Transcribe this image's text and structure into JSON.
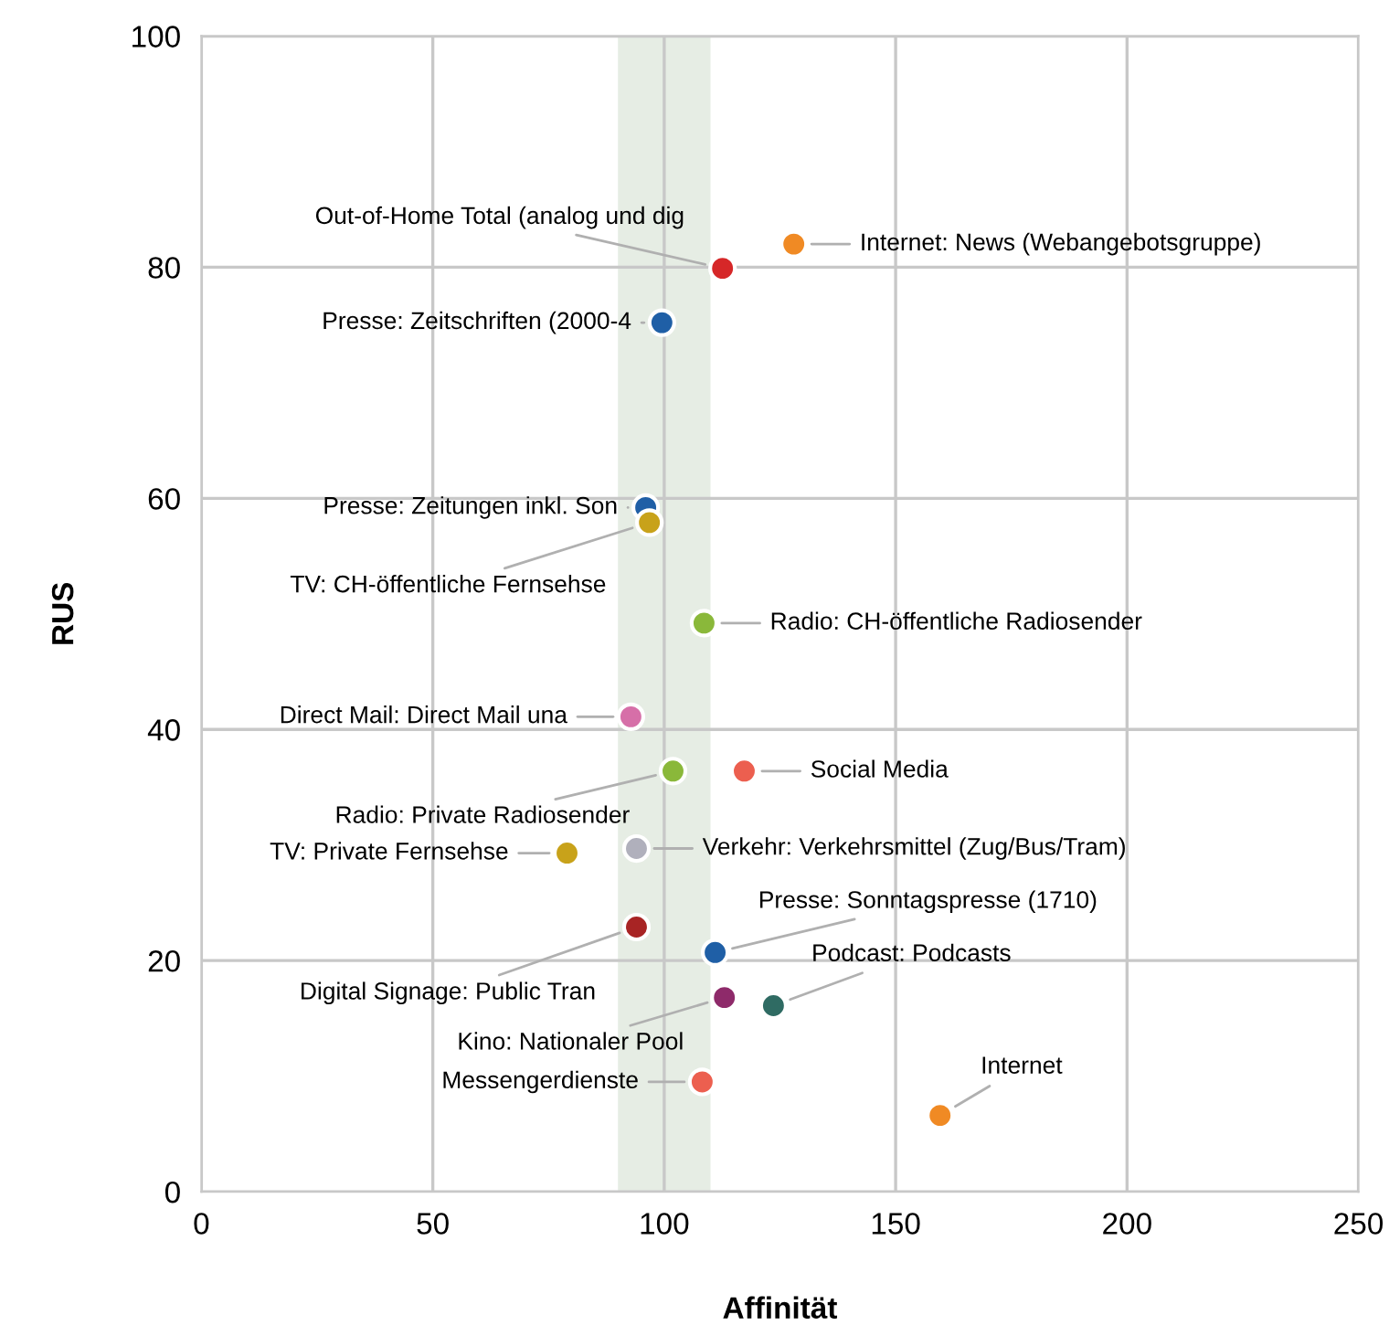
{
  "chart_data": {
    "type": "scatter",
    "xlabel": "Affinität",
    "ylabel": "RUS",
    "xlim": [
      0,
      250
    ],
    "ylim": [
      0,
      100
    ],
    "xticks": [
      0,
      50,
      100,
      150,
      200,
      250
    ],
    "yticks": [
      0,
      20,
      40,
      60,
      80,
      100
    ],
    "grid": true,
    "marker": "circle",
    "bands": [
      {
        "axis": "x",
        "from": 90,
        "to": 110,
        "color": "#e6ede4"
      }
    ],
    "series": [
      {
        "x": [
          128,
          112.6,
          99.5,
          96,
          96.8,
          108.6,
          92.8,
          101.9,
          117.3,
          79,
          94,
          94,
          111,
          123.6,
          113,
          108.2,
          159.6
        ],
        "values": [
          82,
          79.9,
          75.2,
          59.2,
          57.9,
          49.2,
          41.1,
          36.4,
          36.4,
          29.3,
          29.7,
          22.9,
          20.7,
          16.1,
          16.8,
          9.5,
          6.6
        ],
        "colors": [
          "#f08a24",
          "#d62728",
          "#1f5fa6",
          "#1f5fa6",
          "#c8a21a",
          "#8ab83a",
          "#d66fa8",
          "#8ab83a",
          "#ec5f4f",
          "#c8a21a",
          "#b0b0bc",
          "#a82424",
          "#1f5fa6",
          "#2f6b63",
          "#8e2a6a",
          "#ec5f4f",
          "#f08a24"
        ]
      }
    ],
    "annotations": [
      {
        "text": "Internet: News (Webangebotsgruppe)",
        "x": 128,
        "y": 82
      },
      {
        "text": "Out-of-Home Total (analog und dig",
        "x": 112.6,
        "y": 79.9
      },
      {
        "text": "Presse: Zeitschriften (2000-4",
        "x": 99.5,
        "y": 75.2
      },
      {
        "text": "Presse: Zeitungen inkl. Son",
        "x": 96,
        "y": 59.2
      },
      {
        "text": "TV: CH-öffentliche Fernsehse",
        "x": 96.8,
        "y": 57.9
      },
      {
        "text": "Radio: CH-öffentliche Radiosender",
        "x": 108.6,
        "y": 49.2
      },
      {
        "text": "Direct Mail: Direct Mail una",
        "x": 92.8,
        "y": 41.1
      },
      {
        "text": "Radio: Private Radiosender",
        "x": 101.9,
        "y": 36.4
      },
      {
        "text": "Social Media",
        "x": 117.3,
        "y": 36.4
      },
      {
        "text": "TV: Private Fernsehse",
        "x": 79,
        "y": 29.3
      },
      {
        "text": "Verkehr: Verkehrsmittel (Zug/Bus/Tram)",
        "x": 94,
        "y": 29.7
      },
      {
        "text": "Digital Signage: Public Tran",
        "x": 94,
        "y": 22.9
      },
      {
        "text": "Presse: Sonntagspresse (1710)",
        "x": 111,
        "y": 20.7
      },
      {
        "text": "Podcast: Podcasts",
        "x": 123.6,
        "y": 16.1
      },
      {
        "text": "Kino: Nationaler Pool",
        "x": 113,
        "y": 16.8
      },
      {
        "text": "Messengerdienste",
        "x": 108.2,
        "y": 9.5
      },
      {
        "text": "Internet",
        "x": 159.6,
        "y": 6.6
      }
    ]
  }
}
